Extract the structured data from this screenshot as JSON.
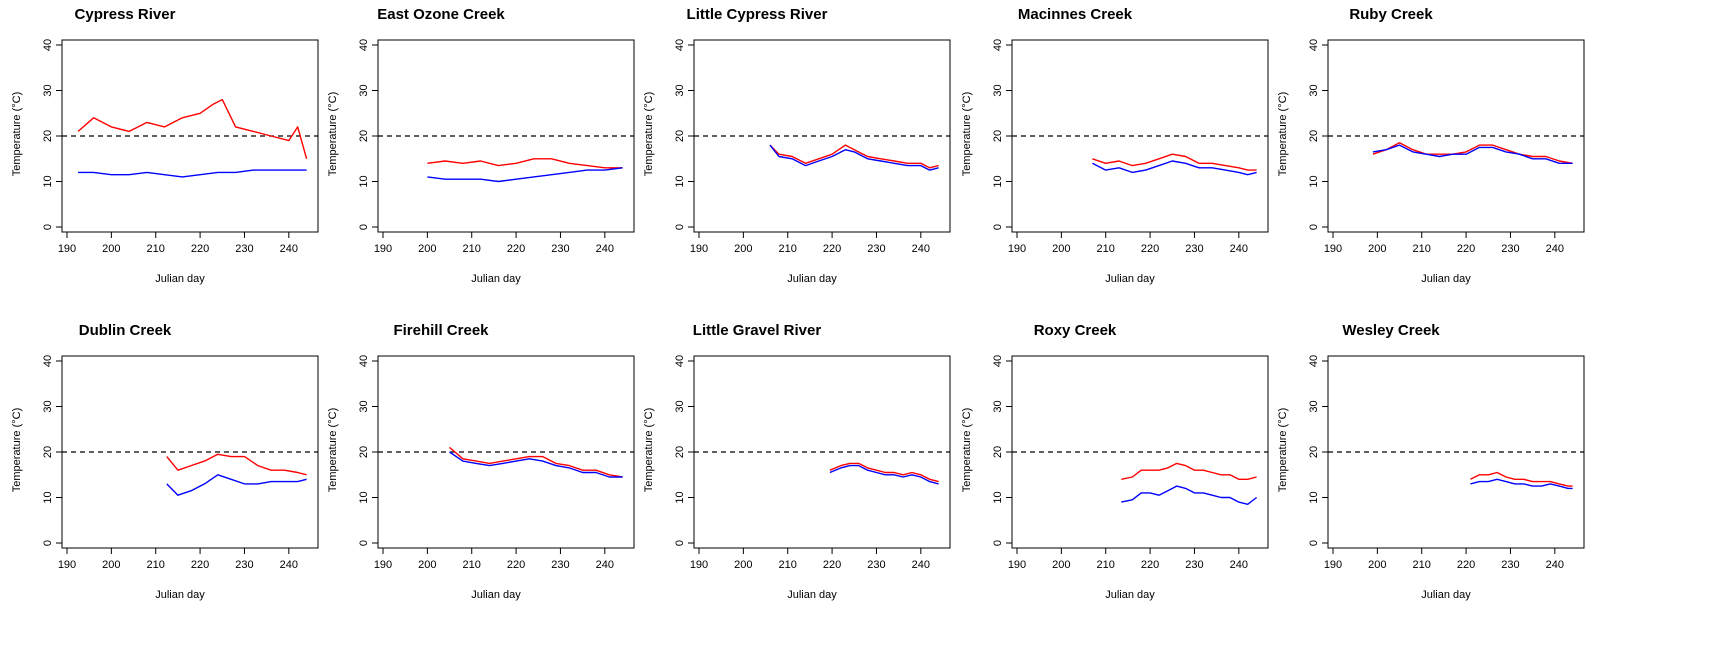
{
  "common": {
    "xlabel": "Julian day",
    "ylabel": "Temperature (°C)",
    "xticks": [
      190,
      200,
      210,
      220,
      230,
      240
    ],
    "yticks": [
      0,
      10,
      20,
      30,
      40
    ],
    "threshold": 20,
    "colors": {
      "series_a": "#ff0000",
      "series_b": "#0000ff",
      "threshold": "#000000"
    }
  },
  "chart_data": [
    {
      "type": "line",
      "title": "Cypress River",
      "xlim": [
        190,
        245
      ],
      "ylim": [
        0,
        40
      ],
      "threshold": 20,
      "series": [
        {
          "color": "#ff0000",
          "x": [
            192.5,
            196,
            200,
            204,
            208,
            212,
            216,
            220,
            223,
            225,
            228,
            232,
            236,
            240,
            242,
            244
          ],
          "y": [
            21,
            24,
            22,
            21,
            23,
            22,
            24,
            25,
            27,
            28,
            22,
            21,
            20,
            19,
            22,
            15
          ]
        },
        {
          "color": "#0000ff",
          "x": [
            192.5,
            196,
            200,
            204,
            208,
            212,
            216,
            220,
            224,
            228,
            232,
            236,
            240,
            244
          ],
          "y": [
            12,
            12,
            11.5,
            11.5,
            12,
            11.5,
            11,
            11.5,
            12,
            12,
            12.5,
            12.5,
            12.5,
            12.5
          ]
        }
      ]
    },
    {
      "type": "line",
      "title": "East Ozone Creek",
      "xlim": [
        190,
        245
      ],
      "ylim": [
        0,
        40
      ],
      "threshold": 20,
      "series": [
        {
          "color": "#ff0000",
          "x": [
            200,
            204,
            208,
            212,
            216,
            220,
            224,
            228,
            232,
            236,
            240,
            244
          ],
          "y": [
            14,
            14.5,
            14,
            14.5,
            13.5,
            14,
            15,
            15,
            14,
            13.5,
            13,
            13
          ]
        },
        {
          "color": "#0000ff",
          "x": [
            200,
            204,
            208,
            212,
            216,
            220,
            224,
            228,
            232,
            236,
            240,
            244
          ],
          "y": [
            11,
            10.5,
            10.5,
            10.5,
            10,
            10.5,
            11,
            11.5,
            12,
            12.5,
            12.5,
            13
          ]
        }
      ]
    },
    {
      "type": "line",
      "title": "Little Cypress River",
      "xlim": [
        190,
        245
      ],
      "ylim": [
        0,
        40
      ],
      "threshold": 20,
      "series": [
        {
          "color": "#ff0000",
          "x": [
            206,
            208,
            211,
            214,
            217,
            220,
            223,
            225,
            228,
            231,
            234,
            237,
            240,
            242,
            244
          ],
          "y": [
            18,
            16,
            15.5,
            14,
            15,
            16,
            18,
            17,
            15.5,
            15,
            14.5,
            14,
            14,
            13,
            13.5
          ]
        },
        {
          "color": "#0000ff",
          "x": [
            206,
            208,
            211,
            214,
            217,
            220,
            223,
            225,
            228,
            231,
            234,
            237,
            240,
            242,
            244
          ],
          "y": [
            18,
            15.5,
            15,
            13.5,
            14.5,
            15.5,
            17,
            16.5,
            15,
            14.5,
            14,
            13.5,
            13.5,
            12.5,
            13
          ]
        }
      ]
    },
    {
      "type": "line",
      "title": "Macinnes Creek",
      "xlim": [
        190,
        245
      ],
      "ylim": [
        0,
        40
      ],
      "threshold": 20,
      "series": [
        {
          "color": "#ff0000",
          "x": [
            207,
            210,
            213,
            216,
            219,
            222,
            225,
            228,
            231,
            234,
            237,
            240,
            242,
            244
          ],
          "y": [
            15,
            14,
            14.5,
            13.5,
            14,
            15,
            16,
            15.5,
            14,
            14,
            13.5,
            13,
            12.5,
            12.5
          ]
        },
        {
          "color": "#0000ff",
          "x": [
            207,
            210,
            213,
            216,
            219,
            222,
            225,
            228,
            231,
            234,
            237,
            240,
            242,
            244
          ],
          "y": [
            14,
            12.5,
            13,
            12,
            12.5,
            13.5,
            14.5,
            14,
            13,
            13,
            12.5,
            12,
            11.5,
            12
          ]
        }
      ]
    },
    {
      "type": "line",
      "title": "Ruby Creek",
      "xlim": [
        190,
        245
      ],
      "ylim": [
        0,
        40
      ],
      "threshold": 20,
      "series": [
        {
          "color": "#ff0000",
          "x": [
            199,
            202,
            205,
            208,
            211,
            214,
            217,
            220,
            223,
            226,
            229,
            232,
            235,
            238,
            241,
            244
          ],
          "y": [
            16,
            17,
            18.5,
            17,
            16,
            16,
            16,
            16.5,
            18,
            18,
            17,
            16,
            15.5,
            15.5,
            14.5,
            14
          ]
        },
        {
          "color": "#0000ff",
          "x": [
            199,
            202,
            205,
            208,
            211,
            214,
            217,
            220,
            223,
            226,
            229,
            232,
            235,
            238,
            241,
            244
          ],
          "y": [
            16.5,
            17,
            18,
            16.5,
            16,
            15.5,
            16,
            16,
            17.5,
            17.5,
            16.5,
            16,
            15,
            15,
            14,
            14
          ]
        }
      ]
    },
    {
      "type": "line",
      "title": "Dublin Creek",
      "xlim": [
        190,
        245
      ],
      "ylim": [
        0,
        40
      ],
      "threshold": 20,
      "series": [
        {
          "color": "#ff0000",
          "x": [
            212.5,
            215,
            218,
            221,
            224,
            227,
            230,
            233,
            236,
            239,
            242,
            244
          ],
          "y": [
            19,
            16,
            17,
            18,
            19.5,
            19,
            19,
            17,
            16,
            16,
            15.5,
            15
          ]
        },
        {
          "color": "#0000ff",
          "x": [
            212.5,
            215,
            218,
            221,
            224,
            227,
            230,
            233,
            236,
            239,
            242,
            244
          ],
          "y": [
            13,
            10.5,
            11.5,
            13,
            15,
            14,
            13,
            13,
            13.5,
            13.5,
            13.5,
            14
          ]
        }
      ]
    },
    {
      "type": "line",
      "title": "Firehill Creek",
      "xlim": [
        190,
        245
      ],
      "ylim": [
        0,
        40
      ],
      "threshold": 20,
      "series": [
        {
          "color": "#ff0000",
          "x": [
            205,
            208,
            211,
            214,
            217,
            220,
            223,
            226,
            229,
            232,
            235,
            238,
            241,
            244
          ],
          "y": [
            21,
            18.5,
            18,
            17.5,
            18,
            18.5,
            19,
            19,
            17.5,
            17,
            16,
            16,
            15,
            14.5
          ]
        },
        {
          "color": "#0000ff",
          "x": [
            205,
            208,
            211,
            214,
            217,
            220,
            223,
            226,
            229,
            232,
            235,
            238,
            241,
            244
          ],
          "y": [
            20,
            18,
            17.5,
            17,
            17.5,
            18,
            18.5,
            18,
            17,
            16.5,
            15.5,
            15.5,
            14.5,
            14.5
          ]
        }
      ]
    },
    {
      "type": "line",
      "title": "Little Gravel River",
      "xlim": [
        190,
        245
      ],
      "ylim": [
        0,
        40
      ],
      "threshold": 20,
      "series": [
        {
          "color": "#ff0000",
          "x": [
            219.5,
            222,
            224,
            226,
            228,
            230,
            232,
            234,
            236,
            238,
            240,
            242,
            244
          ],
          "y": [
            16,
            17,
            17.5,
            17.5,
            16.5,
            16,
            15.5,
            15.5,
            15,
            15.5,
            15,
            14,
            13.5
          ]
        },
        {
          "color": "#0000ff",
          "x": [
            219.5,
            222,
            224,
            226,
            228,
            230,
            232,
            234,
            236,
            238,
            240,
            242,
            244
          ],
          "y": [
            15.5,
            16.5,
            17,
            17,
            16,
            15.5,
            15,
            15,
            14.5,
            15,
            14.5,
            13.5,
            13
          ]
        }
      ]
    },
    {
      "type": "line",
      "title": "Roxy Creek",
      "xlim": [
        190,
        245
      ],
      "ylim": [
        0,
        40
      ],
      "threshold": 20,
      "series": [
        {
          "color": "#ff0000",
          "x": [
            213.5,
            216,
            218,
            220,
            222,
            224,
            226,
            228,
            230,
            232,
            234,
            236,
            238,
            240,
            242,
            244
          ],
          "y": [
            14,
            14.5,
            16,
            16,
            16,
            16.5,
            17.5,
            17,
            16,
            16,
            15.5,
            15,
            15,
            14,
            14,
            14.5
          ]
        },
        {
          "color": "#0000ff",
          "x": [
            213.5,
            216,
            218,
            220,
            222,
            224,
            226,
            228,
            230,
            232,
            234,
            236,
            238,
            240,
            242,
            244
          ],
          "y": [
            9,
            9.5,
            11,
            11,
            10.5,
            11.5,
            12.5,
            12,
            11,
            11,
            10.5,
            10,
            10,
            9,
            8.5,
            10
          ]
        }
      ]
    },
    {
      "type": "line",
      "title": "Wesley Creek",
      "xlim": [
        190,
        245
      ],
      "ylim": [
        0,
        40
      ],
      "threshold": 20,
      "series": [
        {
          "color": "#ff0000",
          "x": [
            221,
            223,
            225,
            227,
            229,
            231,
            233,
            235,
            237,
            239,
            241,
            243,
            244
          ],
          "y": [
            14,
            15,
            15,
            15.5,
            14.5,
            14,
            14,
            13.5,
            13.5,
            13.5,
            13,
            12.5,
            12.5
          ]
        },
        {
          "color": "#0000ff",
          "x": [
            221,
            223,
            225,
            227,
            229,
            231,
            233,
            235,
            237,
            239,
            241,
            243,
            244
          ],
          "y": [
            13,
            13.5,
            13.5,
            14,
            13.5,
            13,
            13,
            12.5,
            12.5,
            13,
            12.5,
            12,
            12
          ]
        }
      ]
    }
  ]
}
